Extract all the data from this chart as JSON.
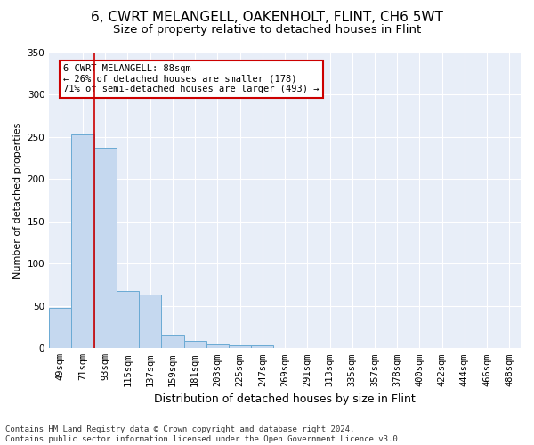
{
  "title": "6, CWRT MELANGELL, OAKENHOLT, FLINT, CH6 5WT",
  "subtitle": "Size of property relative to detached houses in Flint",
  "xlabel": "Distribution of detached houses by size in Flint",
  "ylabel": "Number of detached properties",
  "categories": [
    "49sqm",
    "71sqm",
    "93sqm",
    "115sqm",
    "137sqm",
    "159sqm",
    "181sqm",
    "203sqm",
    "225sqm",
    "247sqm",
    "269sqm",
    "291sqm",
    "313sqm",
    "335sqm",
    "357sqm",
    "378sqm",
    "400sqm",
    "422sqm",
    "444sqm",
    "466sqm",
    "488sqm"
  ],
  "values": [
    48,
    253,
    237,
    68,
    63,
    16,
    9,
    5,
    4,
    3,
    0,
    0,
    0,
    0,
    0,
    0,
    0,
    0,
    0,
    0,
    0
  ],
  "bar_color": "#c5d8ef",
  "bar_edge_color": "#6aaad4",
  "plot_bg_color": "#e8eef8",
  "fig_bg_color": "#ffffff",
  "grid_color": "#ffffff",
  "red_line_x": 1.5,
  "annotation_text": "6 CWRT MELANGELL: 88sqm\n← 26% of detached houses are smaller (178)\n71% of semi-detached houses are larger (493) →",
  "annotation_box_facecolor": "#ffffff",
  "annotation_edge_color": "#cc0000",
  "red_line_color": "#cc0000",
  "footnote": "Contains HM Land Registry data © Crown copyright and database right 2024.\nContains public sector information licensed under the Open Government Licence v3.0.",
  "ylim": [
    0,
    350
  ],
  "yticks": [
    0,
    50,
    100,
    150,
    200,
    250,
    300,
    350
  ],
  "title_fontsize": 11,
  "subtitle_fontsize": 9.5,
  "xlabel_fontsize": 9,
  "ylabel_fontsize": 8,
  "tick_fontsize": 7.5,
  "footnote_fontsize": 6.5,
  "annotation_fontsize": 7.5
}
